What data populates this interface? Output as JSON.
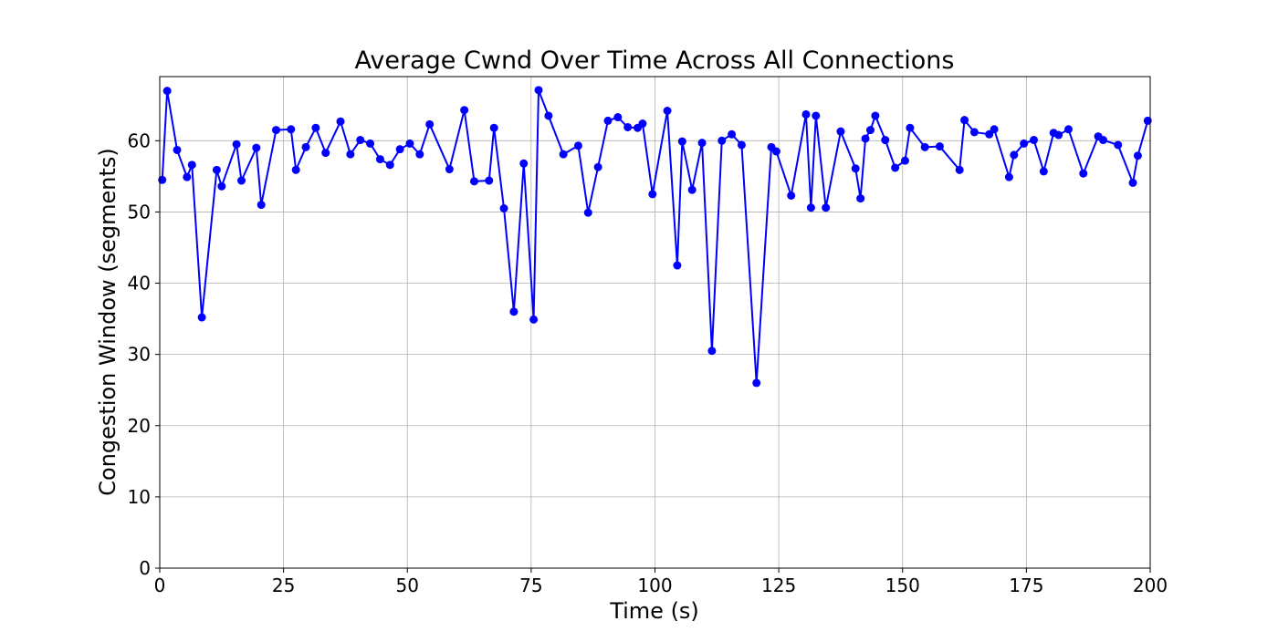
{
  "chart_data": {
    "type": "line",
    "title": "Average Cwnd Over Time Across All Connections",
    "xlabel": "Time (s)",
    "ylabel": "Congestion Window (segments)",
    "xlim": [
      0,
      200
    ],
    "ylim": [
      0,
      69
    ],
    "xticks": [
      0,
      25,
      50,
      75,
      100,
      125,
      150,
      175,
      200
    ],
    "yticks": [
      0,
      10,
      20,
      30,
      40,
      50,
      60
    ],
    "grid": true,
    "legend": "none",
    "series": [
      {
        "color": "#0000ff",
        "marker": "circle",
        "points": [
          [
            0.5,
            54.5
          ],
          [
            1.5,
            67.0
          ],
          [
            3.5,
            58.7
          ],
          [
            5.5,
            54.9
          ],
          [
            6.5,
            56.6
          ],
          [
            8.5,
            35.2
          ],
          [
            11.5,
            55.9
          ],
          [
            12.5,
            53.6
          ],
          [
            15.5,
            59.5
          ],
          [
            16.5,
            54.4
          ],
          [
            19.5,
            59.0
          ],
          [
            20.5,
            51.0
          ],
          [
            23.5,
            61.5
          ],
          [
            26.5,
            61.6
          ],
          [
            27.5,
            55.9
          ],
          [
            29.5,
            59.1
          ],
          [
            31.5,
            61.8
          ],
          [
            33.5,
            58.3
          ],
          [
            36.5,
            62.7
          ],
          [
            38.5,
            58.1
          ],
          [
            40.5,
            60.1
          ],
          [
            42.5,
            59.6
          ],
          [
            44.5,
            57.4
          ],
          [
            46.5,
            56.6
          ],
          [
            48.5,
            58.8
          ],
          [
            50.5,
            59.6
          ],
          [
            52.5,
            58.1
          ],
          [
            54.5,
            62.3
          ],
          [
            58.5,
            56.0
          ],
          [
            61.5,
            64.3
          ],
          [
            63.5,
            54.3
          ],
          [
            66.5,
            54.4
          ],
          [
            67.5,
            61.8
          ],
          [
            69.5,
            50.5
          ],
          [
            71.5,
            36.0
          ],
          [
            73.5,
            56.8
          ],
          [
            75.5,
            34.9
          ],
          [
            76.5,
            67.1
          ],
          [
            78.5,
            63.5
          ],
          [
            81.5,
            58.1
          ],
          [
            84.5,
            59.3
          ],
          [
            86.5,
            49.9
          ],
          [
            88.5,
            56.3
          ],
          [
            90.5,
            62.8
          ],
          [
            92.5,
            63.3
          ],
          [
            94.5,
            61.9
          ],
          [
            96.5,
            61.8
          ],
          [
            97.5,
            62.4
          ],
          [
            99.5,
            52.5
          ],
          [
            102.5,
            64.2
          ],
          [
            104.5,
            42.5
          ],
          [
            105.5,
            59.9
          ],
          [
            107.5,
            53.1
          ],
          [
            109.5,
            59.7
          ],
          [
            111.5,
            30.5
          ],
          [
            113.5,
            60.0
          ],
          [
            115.5,
            60.9
          ],
          [
            117.5,
            59.4
          ],
          [
            120.5,
            26.0
          ],
          [
            123.5,
            59.1
          ],
          [
            124.5,
            58.5
          ],
          [
            127.5,
            52.3
          ],
          [
            130.5,
            63.7
          ],
          [
            131.5,
            50.6
          ],
          [
            132.5,
            63.5
          ],
          [
            134.5,
            50.6
          ],
          [
            137.5,
            61.3
          ],
          [
            140.5,
            56.1
          ],
          [
            141.5,
            51.9
          ],
          [
            142.5,
            60.3
          ],
          [
            143.5,
            61.5
          ],
          [
            144.5,
            63.5
          ],
          [
            146.5,
            60.1
          ],
          [
            148.5,
            56.2
          ],
          [
            150.5,
            57.2
          ],
          [
            151.5,
            61.8
          ],
          [
            154.5,
            59.1
          ],
          [
            157.5,
            59.2
          ],
          [
            161.5,
            55.9
          ],
          [
            162.5,
            62.9
          ],
          [
            164.5,
            61.2
          ],
          [
            167.5,
            60.9
          ],
          [
            168.5,
            61.6
          ],
          [
            171.5,
            54.9
          ],
          [
            172.5,
            58.0
          ],
          [
            174.5,
            59.6
          ],
          [
            176.5,
            60.1
          ],
          [
            178.5,
            55.7
          ],
          [
            180.5,
            61.1
          ],
          [
            181.5,
            60.8
          ],
          [
            183.5,
            61.6
          ],
          [
            186.5,
            55.4
          ],
          [
            189.5,
            60.6
          ],
          [
            190.5,
            60.1
          ],
          [
            193.5,
            59.4
          ],
          [
            196.5,
            54.1
          ],
          [
            197.5,
            57.9
          ],
          [
            199.5,
            62.8
          ]
        ]
      }
    ]
  }
}
